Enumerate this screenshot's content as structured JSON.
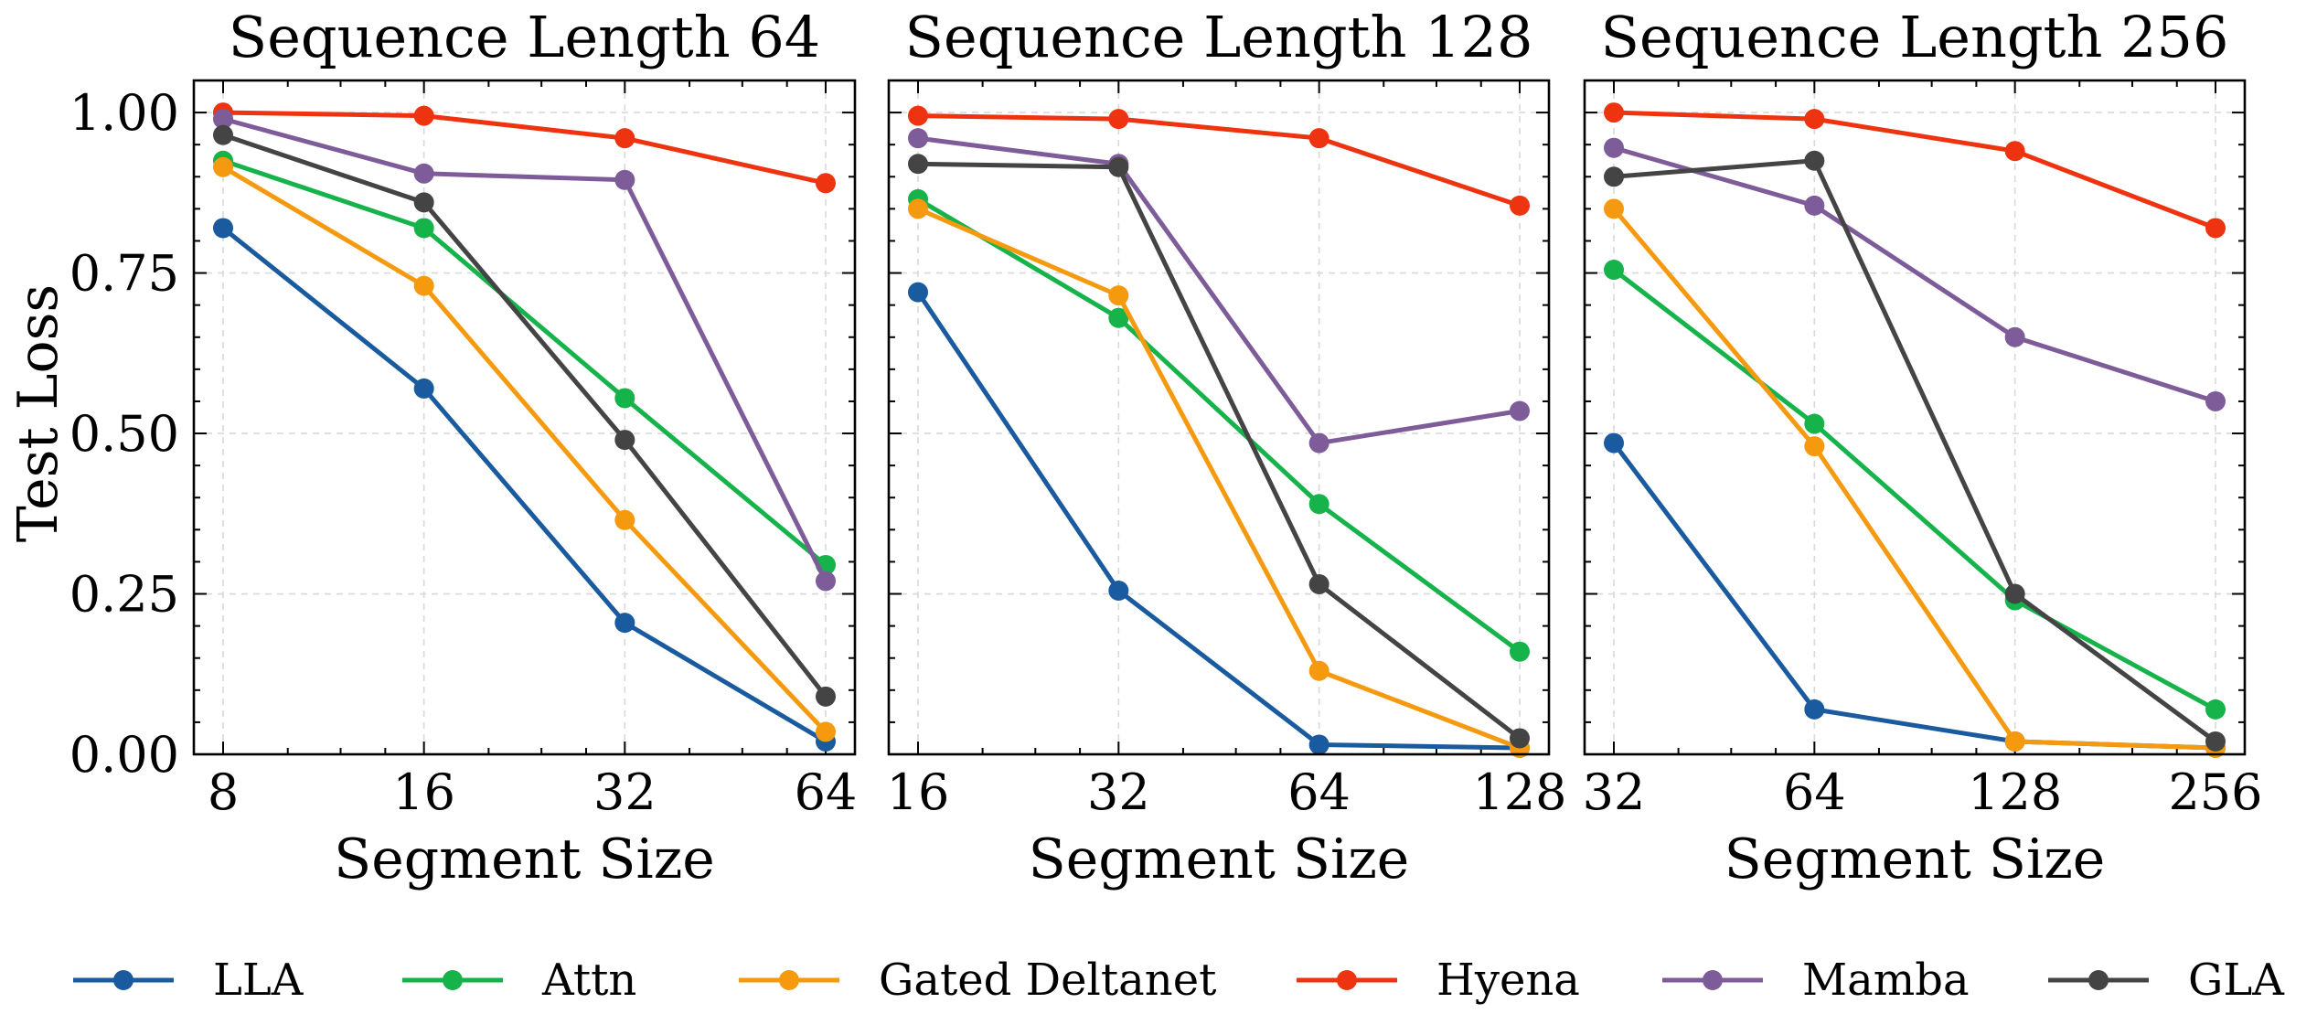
{
  "legend": {
    "placement": "bottom",
    "entries": [
      {
        "name": "LLA",
        "color": "#1a5a9e"
      },
      {
        "name": "Attn",
        "color": "#16b34a"
      },
      {
        "name": "Gated Deltanet",
        "color": "#f59a0f"
      },
      {
        "name": "Hyena",
        "color": "#ee3311"
      },
      {
        "name": "Mamba",
        "color": "#7e5c99"
      },
      {
        "name": "GLA",
        "color": "#444444"
      }
    ]
  },
  "chart_data": [
    {
      "type": "line",
      "title": "Sequence Length 64",
      "xlabel": "Segment Size",
      "ylabel": "Test Loss",
      "x_scale": "log2",
      "x": [
        8,
        16,
        32,
        64
      ],
      "xticks": [
        "8",
        "16",
        "32",
        "64"
      ],
      "ylim": [
        0.0,
        1.05
      ],
      "yticks": [
        "0.00",
        "0.25",
        "0.50",
        "0.75",
        "1.00"
      ],
      "grid": true,
      "series": [
        {
          "name": "LLA",
          "values": [
            0.82,
            0.57,
            0.205,
            0.02
          ]
        },
        {
          "name": "Attn",
          "values": [
            0.925,
            0.82,
            0.555,
            0.295
          ]
        },
        {
          "name": "Gated Deltanet",
          "values": [
            0.915,
            0.73,
            0.365,
            0.035
          ]
        },
        {
          "name": "Hyena",
          "values": [
            1.0,
            0.995,
            0.96,
            0.89
          ]
        },
        {
          "name": "Mamba",
          "values": [
            0.99,
            0.905,
            0.895,
            0.27
          ]
        },
        {
          "name": "GLA",
          "values": [
            0.965,
            0.86,
            0.49,
            0.09
          ]
        }
      ]
    },
    {
      "type": "line",
      "title": "Sequence Length 128",
      "xlabel": "Segment Size",
      "ylabel": "",
      "x_scale": "log2",
      "x": [
        16,
        32,
        64,
        128
      ],
      "xticks": [
        "16",
        "32",
        "64",
        "128"
      ],
      "ylim": [
        0.0,
        1.05
      ],
      "yticks": [],
      "grid": true,
      "series": [
        {
          "name": "LLA",
          "values": [
            0.72,
            0.255,
            0.015,
            0.01
          ]
        },
        {
          "name": "Attn",
          "values": [
            0.865,
            0.68,
            0.39,
            0.16
          ]
        },
        {
          "name": "Gated Deltanet",
          "values": [
            0.85,
            0.715,
            0.13,
            0.01
          ]
        },
        {
          "name": "Hyena",
          "values": [
            0.995,
            0.99,
            0.96,
            0.855
          ]
        },
        {
          "name": "Mamba",
          "values": [
            0.96,
            0.92,
            0.485,
            0.535
          ]
        },
        {
          "name": "GLA",
          "values": [
            0.92,
            0.915,
            0.265,
            0.025
          ]
        }
      ]
    },
    {
      "type": "line",
      "title": "Sequence Length 256",
      "xlabel": "Segment Size",
      "ylabel": "",
      "x_scale": "log2",
      "x": [
        32,
        64,
        128,
        256
      ],
      "xticks": [
        "32",
        "64",
        "128",
        "256"
      ],
      "ylim": [
        0.0,
        1.05
      ],
      "yticks": [],
      "grid": true,
      "series": [
        {
          "name": "LLA",
          "values": [
            0.485,
            0.07,
            0.02,
            0.01
          ]
        },
        {
          "name": "Attn",
          "values": [
            0.755,
            0.515,
            0.24,
            0.07
          ]
        },
        {
          "name": "Gated Deltanet",
          "values": [
            0.85,
            0.48,
            0.02,
            0.01
          ]
        },
        {
          "name": "Hyena",
          "values": [
            1.0,
            0.99,
            0.94,
            0.82
          ]
        },
        {
          "name": "Mamba",
          "values": [
            0.945,
            0.855,
            0.65,
            0.55
          ]
        },
        {
          "name": "GLA",
          "values": [
            0.9,
            0.925,
            0.25,
            0.02
          ]
        }
      ]
    }
  ]
}
